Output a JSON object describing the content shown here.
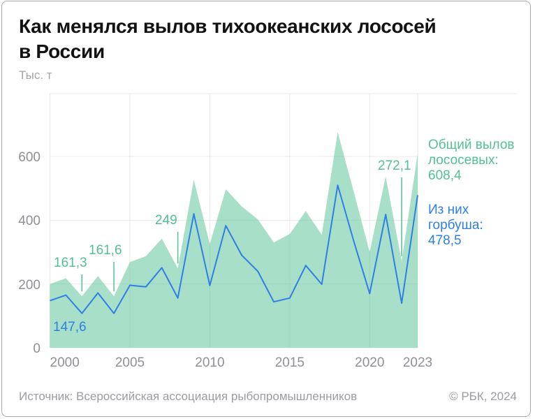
{
  "card": {
    "title_lines": [
      "Как менялся вылов тихоокеанских лососей",
      "в России"
    ],
    "units_label": "Тыс. т"
  },
  "colors": {
    "accent_green": "#52c093",
    "accent_blue": "#2e7fe6",
    "area_fill_rgba": "rgba(82,192,147,0.5)",
    "grid": "#e9e9ec",
    "axis_text": "#8f8f95",
    "title_text": "#121212",
    "muted_text": "#9b9ba1"
  },
  "chart_data": {
    "type": "area",
    "title": "Как менялся вылов тихоокеанских лососей в России",
    "ylabel": "Тыс. т",
    "xlabel": "",
    "grid": true,
    "legend_position": "right",
    "ylim": [
      0,
      797
    ],
    "yticks": [
      0,
      200,
      400,
      600
    ],
    "xticks": [
      2000,
      2005,
      2010,
      2015,
      2020,
      2023
    ],
    "x": [
      2000,
      2001,
      2002,
      2003,
      2004,
      2005,
      2006,
      2007,
      2008,
      2009,
      2010,
      2011,
      2012,
      2013,
      2014,
      2015,
      2016,
      2017,
      2018,
      2019,
      2020,
      2021,
      2022,
      2023
    ],
    "series": [
      {
        "id": "total",
        "name": "Общий вылов лососевых",
        "render": "area",
        "color": "#52c093",
        "values": [
          200,
          218,
          161.3,
          225,
          161.6,
          269,
          287,
          342,
          249,
          527,
          325,
          497,
          443,
          403,
          330,
          357,
          429,
          354,
          676,
          490,
          300,
          537,
          272.1,
          608.4
        ]
      },
      {
        "id": "gorbusha",
        "name": "Из них горбуша",
        "render": "line",
        "color": "#2e7fe6",
        "values": [
          147.6,
          165,
          108,
          172,
          108,
          196,
          191,
          251,
          156,
          420,
          195,
          383,
          290,
          240,
          144,
          156,
          258,
          199,
          510,
          335,
          170,
          418,
          140,
          478.5
        ]
      }
    ],
    "annotations": [
      {
        "series": "total",
        "year": 2002,
        "text": "161,3",
        "tick": true
      },
      {
        "series": "total",
        "year": 2004,
        "text": "161,6",
        "tick": true
      },
      {
        "series": "total",
        "year": 2008,
        "text": "249",
        "tick": true
      },
      {
        "series": "total",
        "year": 2022,
        "text": "272,1",
        "tick": true
      },
      {
        "series": "gorbusha",
        "year": 2000,
        "text": "147,6",
        "tick": false
      }
    ]
  },
  "legend": {
    "total_label": "Общий вылов лососевых:",
    "total_value": "608,4",
    "gorbusha_label": "Из них горбуша:",
    "gorbusha_value": "478,5"
  },
  "footer": {
    "source": "Источник: Всероссийская ассоциация рыбопромышленников",
    "copyright": "© РБК, 2024"
  }
}
